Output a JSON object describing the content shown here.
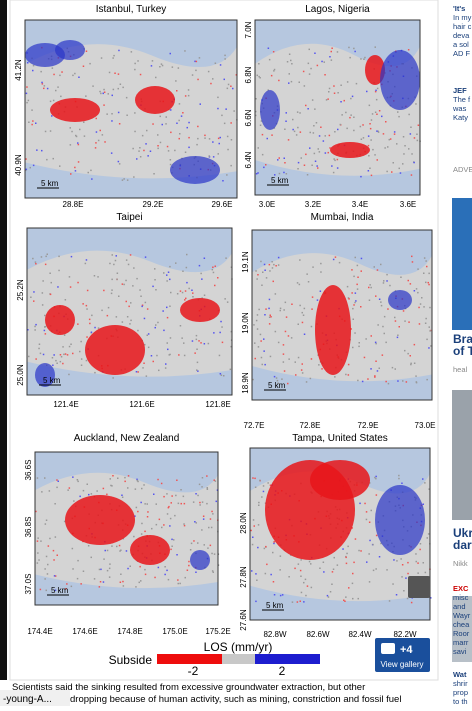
{
  "figure": {
    "panels": [
      {
        "title": "Istanbul, Turkey",
        "y_labels": [
          "41.2N",
          "40.9N"
        ],
        "x_labels": [
          "28.8E",
          "29.2E",
          "29.6E"
        ],
        "scale": "5 km"
      },
      {
        "title": "Lagos, Nigeria",
        "y_labels": [
          "7.0N",
          "6.8N",
          "6.6N",
          "6.4N"
        ],
        "x_labels": [
          "3.0E",
          "3.2E",
          "3.4E",
          "3.6E"
        ],
        "scale": "5 km"
      },
      {
        "title": "Taipei",
        "y_labels": [
          "25.2N",
          "25.0N"
        ],
        "x_labels": [
          "121.4E",
          "121.6E",
          "121.8E"
        ],
        "scale": "5 km"
      },
      {
        "title": "Mumbai, India",
        "y_labels": [
          "19.1N",
          "19.0N",
          "18.9N"
        ],
        "x_labels": [
          "72.7E",
          "72.8E",
          "72.9E",
          "73.0E"
        ],
        "scale": "5 km"
      },
      {
        "title": "Auckland, New Zealand",
        "y_labels": [
          "36.6S",
          "36.8S",
          "37.0S"
        ],
        "x_labels": [
          "174.4E",
          "174.6E",
          "174.8E",
          "175.0E",
          "175.2E"
        ],
        "scale": "5 km"
      },
      {
        "title": "Tampa, United States",
        "y_labels": [
          "28.0N",
          "27.8N",
          "27.6N"
        ],
        "x_labels": [
          "82.8W",
          "82.6W",
          "82.4W",
          "82.2W"
        ],
        "scale": "5 km"
      }
    ],
    "colorbar": {
      "title": "LOS (mm/yr)",
      "low_label": "Subside",
      "ticks": [
        "-2",
        "2"
      ]
    },
    "gallery": {
      "count": "+4",
      "label": "View gallery"
    }
  },
  "caption": [
    "Scientists said the sinking resulted from excessive groundwater extraction, but other",
    "dropping because of human activity, such as mining, constriction and fossil fuel"
  ],
  "overlay": "-young-A...",
  "sidebar": [
    "'It's",
    "In my",
    "hair c",
    "deva",
    "a sol",
    "AD F",
    "JEF",
    "The f",
    "was",
    "Katy",
    "ADVE",
    "Bra",
    "of T",
    "heal",
    "Ukr",
    "dar",
    "Nikk",
    "EXC",
    "misc",
    "and",
    "Wayr",
    "chea",
    "Roor",
    "marr",
    "savi",
    "Wat",
    "shrir",
    "prop",
    "to th"
  ]
}
